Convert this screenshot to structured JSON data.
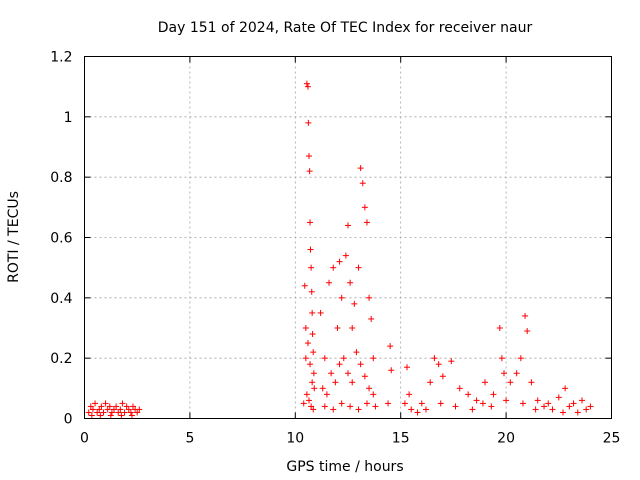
{
  "chart_data": {
    "type": "scatter",
    "title": "Day 151 of 2024, Rate Of TEC Index for receiver naur",
    "xlabel": "GPS time / hours",
    "ylabel": "ROTI / TECUs",
    "xlim": [
      0,
      25
    ],
    "ylim": [
      0,
      1.2
    ],
    "xticks": [
      0,
      5,
      10,
      15,
      20,
      25
    ],
    "xtick_labels": [
      "0",
      "5",
      "10",
      "15",
      "20",
      "25"
    ],
    "yticks": [
      0,
      0.2,
      0.4,
      0.6,
      0.8,
      1.0,
      1.2
    ],
    "ytick_labels": [
      "0",
      "0.2",
      "0.4",
      "0.6",
      "0.8",
      "1",
      "1.2"
    ],
    "grid": true,
    "marker": "+",
    "color": "#ff0000",
    "series": [
      {
        "name": "ROTI",
        "points": [
          [
            0.2,
            0.02
          ],
          [
            0.3,
            0.04
          ],
          [
            0.4,
            0.03
          ],
          [
            0.5,
            0.05
          ],
          [
            0.6,
            0.02
          ],
          [
            0.7,
            0.03
          ],
          [
            0.8,
            0.04
          ],
          [
            0.9,
            0.02
          ],
          [
            1.0,
            0.05
          ],
          [
            1.1,
            0.03
          ],
          [
            1.2,
            0.04
          ],
          [
            1.3,
            0.02
          ],
          [
            1.4,
            0.03
          ],
          [
            1.5,
            0.04
          ],
          [
            1.6,
            0.02
          ],
          [
            1.7,
            0.03
          ],
          [
            1.8,
            0.05
          ],
          [
            1.9,
            0.02
          ],
          [
            2.0,
            0.04
          ],
          [
            2.1,
            0.03
          ],
          [
            2.2,
            0.02
          ],
          [
            2.3,
            0.04
          ],
          [
            2.4,
            0.03
          ],
          [
            2.5,
            0.02
          ],
          [
            2.6,
            0.03
          ],
          [
            0.35,
            0.01
          ],
          [
            0.75,
            0.01
          ],
          [
            1.25,
            0.01
          ],
          [
            1.75,
            0.01
          ],
          [
            2.25,
            0.01
          ],
          [
            10.4,
            0.05
          ],
          [
            10.45,
            0.44
          ],
          [
            10.5,
            0.3
          ],
          [
            10.55,
            1.11
          ],
          [
            10.6,
            1.1
          ],
          [
            10.62,
            0.98
          ],
          [
            10.65,
            0.87
          ],
          [
            10.68,
            0.82
          ],
          [
            10.7,
            0.65
          ],
          [
            10.72,
            0.56
          ],
          [
            10.75,
            0.5
          ],
          [
            10.78,
            0.42
          ],
          [
            10.8,
            0.35
          ],
          [
            10.82,
            0.28
          ],
          [
            10.85,
            0.22
          ],
          [
            10.88,
            0.15
          ],
          [
            10.9,
            0.1
          ],
          [
            10.5,
            0.2
          ],
          [
            10.6,
            0.25
          ],
          [
            10.7,
            0.18
          ],
          [
            10.8,
            0.12
          ],
          [
            10.55,
            0.08
          ],
          [
            10.65,
            0.06
          ],
          [
            10.75,
            0.04
          ],
          [
            10.85,
            0.03
          ],
          [
            11.2,
            0.35
          ],
          [
            11.4,
            0.2
          ],
          [
            11.6,
            0.45
          ],
          [
            11.8,
            0.5
          ],
          [
            12.0,
            0.3
          ],
          [
            12.1,
            0.52
          ],
          [
            12.2,
            0.4
          ],
          [
            12.4,
            0.54
          ],
          [
            12.5,
            0.64
          ],
          [
            12.6,
            0.45
          ],
          [
            12.7,
            0.3
          ],
          [
            12.8,
            0.38
          ],
          [
            13.0,
            0.5
          ],
          [
            13.1,
            0.83
          ],
          [
            13.2,
            0.78
          ],
          [
            13.3,
            0.7
          ],
          [
            13.4,
            0.65
          ],
          [
            13.5,
            0.4
          ],
          [
            13.6,
            0.33
          ],
          [
            13.7,
            0.2
          ],
          [
            11.3,
            0.1
          ],
          [
            11.5,
            0.08
          ],
          [
            11.7,
            0.15
          ],
          [
            11.9,
            0.12
          ],
          [
            12.1,
            0.18
          ],
          [
            12.3,
            0.2
          ],
          [
            12.5,
            0.15
          ],
          [
            12.7,
            0.12
          ],
          [
            12.9,
            0.22
          ],
          [
            13.1,
            0.18
          ],
          [
            13.3,
            0.14
          ],
          [
            13.5,
            0.1
          ],
          [
            13.7,
            0.08
          ],
          [
            11.4,
            0.04
          ],
          [
            11.8,
            0.03
          ],
          [
            12.2,
            0.05
          ],
          [
            12.6,
            0.04
          ],
          [
            13.0,
            0.03
          ],
          [
            13.4,
            0.05
          ],
          [
            13.8,
            0.04
          ],
          [
            14.4,
            0.05
          ],
          [
            14.5,
            0.24
          ],
          [
            14.55,
            0.16
          ],
          [
            15.2,
            0.05
          ],
          [
            15.3,
            0.17
          ],
          [
            15.4,
            0.08
          ],
          [
            15.5,
            0.03
          ],
          [
            16.0,
            0.05
          ],
          [
            16.4,
            0.12
          ],
          [
            16.6,
            0.2
          ],
          [
            16.8,
            0.18
          ],
          [
            17.0,
            0.14
          ],
          [
            17.4,
            0.19
          ],
          [
            17.8,
            0.1
          ],
          [
            18.2,
            0.08
          ],
          [
            18.6,
            0.06
          ],
          [
            19.0,
            0.12
          ],
          [
            19.4,
            0.08
          ],
          [
            19.7,
            0.3
          ],
          [
            19.8,
            0.2
          ],
          [
            19.9,
            0.15
          ],
          [
            20.2,
            0.12
          ],
          [
            20.5,
            0.15
          ],
          [
            20.7,
            0.2
          ],
          [
            20.9,
            0.34
          ],
          [
            21.0,
            0.29
          ],
          [
            21.2,
            0.12
          ],
          [
            21.5,
            0.06
          ],
          [
            22.0,
            0.05
          ],
          [
            22.5,
            0.07
          ],
          [
            22.8,
            0.1
          ],
          [
            23.2,
            0.05
          ],
          [
            23.6,
            0.06
          ],
          [
            24.0,
            0.04
          ],
          [
            15.8,
            0.02
          ],
          [
            16.2,
            0.03
          ],
          [
            16.9,
            0.05
          ],
          [
            17.6,
            0.04
          ],
          [
            18.4,
            0.03
          ],
          [
            18.9,
            0.05
          ],
          [
            19.3,
            0.04
          ],
          [
            20.0,
            0.06
          ],
          [
            20.8,
            0.05
          ],
          [
            21.4,
            0.03
          ],
          [
            21.8,
            0.04
          ],
          [
            22.2,
            0.03
          ],
          [
            22.7,
            0.02
          ],
          [
            23.0,
            0.04
          ],
          [
            23.4,
            0.02
          ],
          [
            23.8,
            0.03
          ]
        ]
      }
    ]
  }
}
